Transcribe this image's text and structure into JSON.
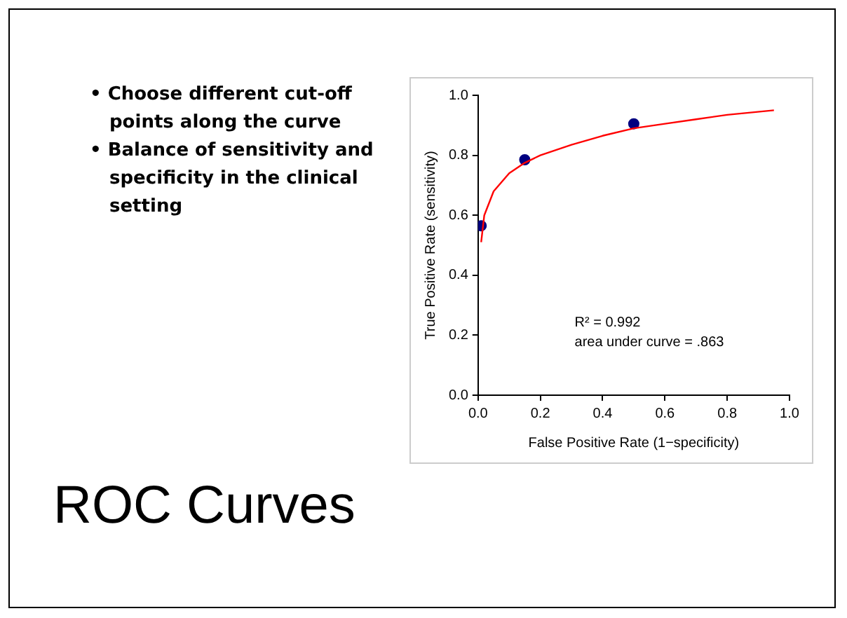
{
  "chart_data": {
    "type": "scatter",
    "title": "ROC Curves",
    "xlabel": "False Positive Rate (1−specificity)",
    "ylabel": "True Positive Rate (sensitivity)",
    "annotations": [
      "• Choose different cut-off points along the curve",
      "• Balance of sensitivity and specificity in the clinical setting",
      "R² = 0.992",
      "area under curve = .863"
    ],
    "xlim": [
      0,
      1
    ],
    "xticks": [
      {
        "value": 0,
        "label": "0.0"
      },
      {
        "value": 0.2,
        "label": "0.2"
      },
      {
        "value": 0.4,
        "label": "0.4"
      },
      {
        "value": 0.6,
        "label": "0.6"
      },
      {
        "value": 0.8,
        "label": "0.8"
      },
      {
        "value": 1,
        "label": "1.0"
      }
    ],
    "ylim": [
      0,
      1
    ],
    "yticks": [
      {
        "value": 0,
        "label": "0.0"
      },
      {
        "value": 0.2,
        "label": "0.2"
      },
      {
        "value": 0.4,
        "label": "0.4"
      },
      {
        "value": 0.6,
        "label": "0.6"
      },
      {
        "value": 0.8,
        "label": "0.8"
      },
      {
        "value": 1,
        "label": "1.0"
      }
    ],
    "grid": false,
    "legend": false,
    "marker": "circle",
    "series": [
      {
        "type": "line",
        "color": "#ff0000",
        "marker": "none",
        "x": [
          0.01,
          0.02,
          0.05,
          0.1,
          0.15,
          0.2,
          0.3,
          0.4,
          0.5,
          0.6,
          0.7,
          0.8,
          0.95
        ],
        "values": [
          0.51,
          0.6,
          0.68,
          0.74,
          0.775,
          0.8,
          0.835,
          0.865,
          0.89,
          0.905,
          0.92,
          0.935,
          0.95
        ]
      },
      {
        "color": "#000080",
        "x": [
          0.01,
          0.15,
          0.5
        ],
        "values": [
          0.565,
          0.785,
          0.905
        ]
      }
    ]
  }
}
